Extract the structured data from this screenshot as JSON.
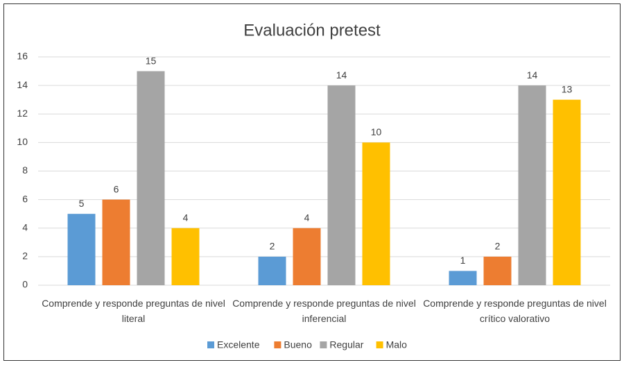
{
  "chart_data": {
    "type": "bar",
    "title": "Evaluación pretest",
    "categories": [
      "Comprende y responde preguntas de nivel literal",
      "Comprende y responde preguntas de nivel inferencial",
      "Comprende y responde preguntas de nivel crítico valorativo"
    ],
    "series": [
      {
        "name": "Excelente",
        "color": "#5b9bd5",
        "values": [
          5,
          2,
          1
        ]
      },
      {
        "name": "Bueno",
        "color": "#ed7d31",
        "values": [
          6,
          4,
          2
        ]
      },
      {
        "name": "Regular",
        "color": "#a5a5a5",
        "values": [
          15,
          14,
          14
        ]
      },
      {
        "name": "Malo",
        "color": "#ffc000",
        "values": [
          4,
          10,
          13
        ]
      }
    ],
    "ylim": [
      0,
      16
    ],
    "yticks": [
      0,
      2,
      4,
      6,
      8,
      10,
      12,
      14,
      16
    ],
    "grid": true,
    "legend": "bottom"
  }
}
